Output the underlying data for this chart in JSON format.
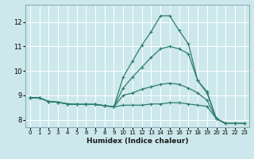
{
  "xlabel": "Humidex (Indice chaleur)",
  "bg_color": "#cce8ec",
  "grid_color": "#ffffff",
  "line_color": "#2e7d6e",
  "xlim": [
    -0.5,
    23.5
  ],
  "ylim": [
    7.7,
    12.7
  ],
  "xticks": [
    0,
    1,
    2,
    3,
    4,
    5,
    6,
    7,
    8,
    9,
    10,
    11,
    12,
    13,
    14,
    15,
    16,
    17,
    18,
    19,
    20,
    21,
    22,
    23
  ],
  "yticks": [
    8,
    9,
    10,
    11,
    12
  ],
  "line1_y": [
    8.9,
    8.9,
    8.75,
    8.72,
    8.65,
    8.63,
    8.63,
    8.63,
    8.58,
    8.53,
    9.75,
    10.4,
    11.05,
    11.6,
    12.25,
    12.25,
    11.65,
    11.1,
    9.6,
    9.15,
    8.05,
    7.85,
    7.85,
    7.85
  ],
  "line2_y": [
    8.9,
    8.9,
    8.75,
    8.72,
    8.65,
    8.63,
    8.63,
    8.63,
    8.58,
    8.53,
    9.3,
    9.75,
    10.15,
    10.55,
    10.9,
    11.0,
    10.9,
    10.7,
    9.6,
    9.1,
    8.05,
    7.85,
    7.85,
    7.85
  ],
  "line3_y": [
    8.9,
    8.9,
    8.75,
    8.72,
    8.65,
    8.63,
    8.63,
    8.63,
    8.58,
    8.53,
    9.0,
    9.1,
    9.25,
    9.35,
    9.45,
    9.5,
    9.45,
    9.3,
    9.1,
    8.8,
    8.05,
    7.85,
    7.85,
    7.85
  ],
  "line4_y": [
    8.9,
    8.9,
    8.75,
    8.72,
    8.65,
    8.63,
    8.63,
    8.63,
    8.58,
    8.53,
    8.6,
    8.6,
    8.6,
    8.65,
    8.65,
    8.7,
    8.7,
    8.65,
    8.6,
    8.55,
    8.05,
    7.85,
    7.85,
    7.85
  ]
}
